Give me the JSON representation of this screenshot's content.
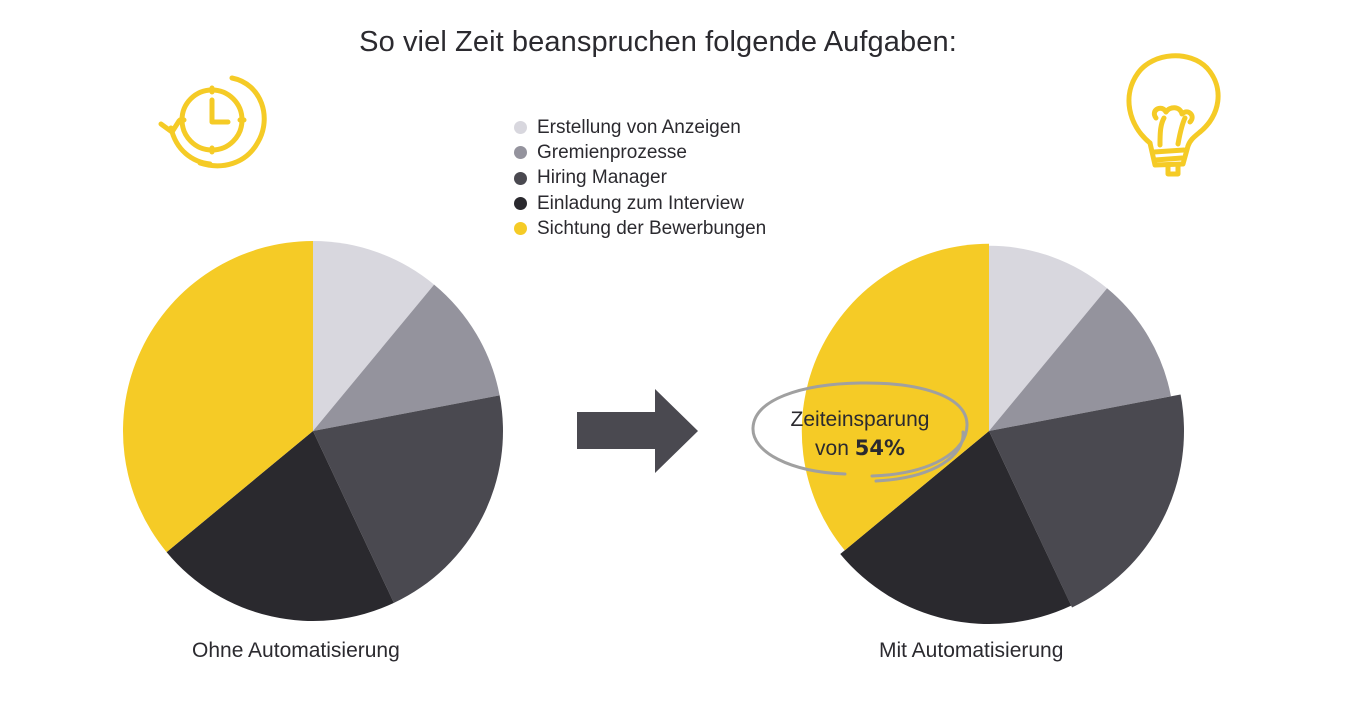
{
  "colors": {
    "yellow": "#f5cb26",
    "light_gray": "#d8d7de",
    "mid_gray": "#94939d",
    "dark_gray": "#4a4950",
    "near_black": "#2a292e",
    "arrow": "#4a4950",
    "ellipse": "#999999"
  },
  "icons": [
    "clock-rotate-icon",
    "lightbulb-icon",
    "arrow-right-icon"
  ],
  "savings": {
    "prefix": "Zeiteinsparung",
    "von": "von",
    "value": "54%"
  },
  "chart_data": {
    "type": "pie",
    "title": "So viel Zeit beanspruchen folgende Aufgaben:",
    "legend": [
      {
        "label": "Erstellung von Anzeigen",
        "color": "#d8d7de"
      },
      {
        "label": "Gremienprozesse",
        "color": "#94939d"
      },
      {
        "label": "Hiring Manager",
        "color": "#4a4950"
      },
      {
        "label": "Einladung zum Interview",
        "color": "#2a292e"
      },
      {
        "label": "Sichtung der Bewerbungen",
        "color": "#f5cb26"
      }
    ],
    "legend_position": "top-center",
    "charts": [
      {
        "label": "Ohne Automatisierung",
        "type": "pie",
        "values": [
          11,
          11,
          21,
          21,
          36
        ]
      },
      {
        "label": "Mit Automatisierung",
        "type": "polar-area",
        "angles": [
          11,
          11,
          21,
          21,
          36
        ],
        "relative_radius": [
          0.95,
          0.95,
          1.0,
          0.99,
          0.96
        ]
      }
    ]
  }
}
